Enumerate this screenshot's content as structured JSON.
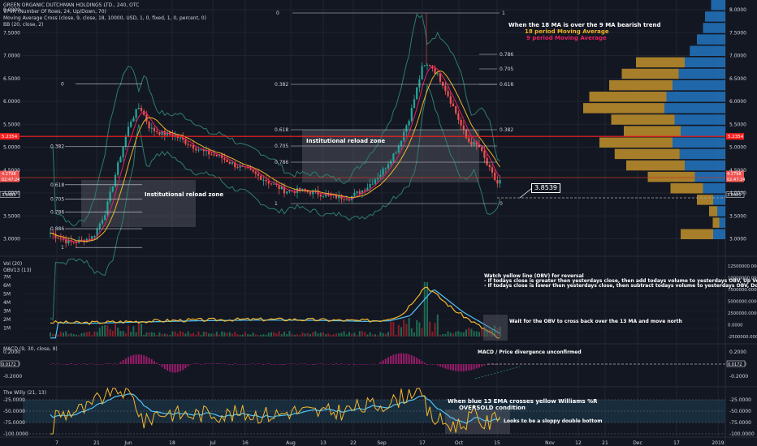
{
  "header": {
    "title": "GREEN ORGANIC DUTCHMAN HOLDINGS LTD., 240, OTC",
    "indicators": [
      "VPVR (Number Of Rows, 24, Up/Down, 70)",
      "Moving Average Cross (close, 9, close, 18, 10000, USD, 1, 0, fixed, 1, 0, percent, 0)",
      "BB (20, close, 2)"
    ]
  },
  "colors": {
    "background": "#131722",
    "grid": "#1f2433",
    "text": "#d1d4dc",
    "up_candle": "#26a69a",
    "down_candle": "#ef5350",
    "ma9": "#e91e63",
    "ma18": "#f0b429",
    "bb": "#2e7d6b",
    "obv": "#f5b82e",
    "obv_ma": "#4fc3f7",
    "vpvr_up": "#2270b8",
    "vpvr_down": "#b88a2a",
    "red_line": "#ff1f1f",
    "macd_hist": "#9c1c6b",
    "willy_band": "#1c3b4e"
  },
  "price_pane": {
    "y_ticks": [
      "8.0000",
      "7.5000",
      "7.0000",
      "6.5000",
      "6.0000",
      "5.5000",
      "5.0000",
      "4.5000",
      "4.0000",
      "3.5000",
      "3.0000"
    ],
    "red_level": "5.2354",
    "price_badge_top": "4.2798",
    "price_badge_mid": "02:47:24",
    "price_badge_bottom": "3.8485",
    "callout": "3.8539",
    "fib_left": [
      {
        "label": "0",
        "value": 6.38
      },
      {
        "label": "0.382",
        "value": 5.02
      },
      {
        "label": "0.618",
        "value": 4.18
      },
      {
        "label": "0.705",
        "value": 3.87
      },
      {
        "label": "0.786",
        "value": 3.58
      },
      {
        "label": "0.886",
        "value": 3.22
      },
      {
        "label": "1",
        "value": 2.81
      }
    ],
    "fib_right": [
      {
        "label": "0",
        "value": 8.0
      },
      {
        "label": "1",
        "value": 8.0
      },
      {
        "label": "0.786",
        "value": 7.0
      },
      {
        "label": "0.705",
        "value": 6.7
      },
      {
        "label": "0.618",
        "value": 6.38
      },
      {
        "label": "0.382",
        "value": 5.28
      },
      {
        "label": "0.382",
        "value": 5.76
      },
      {
        "label": "0.618",
        "value": 5.28
      },
      {
        "label": "0.705",
        "value": 4.98
      },
      {
        "label": "0.786",
        "value": 4.66
      },
      {
        "label": "1",
        "value": 3.85
      },
      {
        "label": "0",
        "value": 3.85
      }
    ],
    "zone_label": "Institutional reload zone",
    "note_title": "When the 18 MA is over the 9 MA bearish trend",
    "note_ma18": "18 period Moving Average",
    "note_ma9": "9 period Moving Average"
  },
  "volume_pane": {
    "legend_vol": "Vol (20)",
    "legend_obv": "OBV13 (13)",
    "left_ticks": [
      "7M",
      "6M",
      "5M",
      "4M",
      "3M",
      "2M",
      "1M"
    ],
    "right_ticks": [
      "12500000.0000",
      "10000000.0000",
      "7500000.0000",
      "5000000.0000",
      "2500000.0000",
      "0.0000",
      "-2500000.0000"
    ],
    "note_lines": [
      "Watch yellow line (OBV) for reversal",
      "- If todays close is greater then yesterdays close, then add todays volume to yesterdays OBV, Up Volume",
      "- If todays close is lower then yesterdays close, then subtract todays volume to yesterdays OBV, Down Volume"
    ],
    "note_cross": "Wait for the OBV to cross back over the 13 MA and move north"
  },
  "macd_pane": {
    "legend": "MACD (9, 30, close, 9)",
    "left_ticks": [
      "0.2000",
      "0.0000",
      "-0.2000"
    ],
    "right_ticks": [
      "0.2000",
      "0.0000",
      "-0.2000"
    ],
    "left_badge": "0.0172",
    "right_badge": "0.0172",
    "note": "MACD / Price divergence unconfirmed"
  },
  "willy_pane": {
    "legend": "The Willy (21, 13)",
    "ticks": [
      "-25.0000",
      "-50.0000",
      "-75.0000",
      "-100.0000"
    ],
    "note_1": "When blue 13 EMA crosses yellow Williams %R",
    "note_2": "OVERSOLD condition",
    "note_3": "Looks to be a sloppy double bottom"
  },
  "x_axis": {
    "labels": [
      "7",
      "21",
      "Jun",
      "18",
      "Jul",
      "16",
      "Aug",
      "13",
      "22",
      "Sep",
      "17",
      "Oct",
      "15",
      "Nov",
      "12",
      "21",
      "Dec",
      "17",
      "2019"
    ]
  },
  "chart_data": {
    "type": "candlestick",
    "title": "GREEN ORGANIC DUTCHMAN HOLDINGS LTD., 240, OTC",
    "x": [
      "May 7",
      "May 21",
      "Jun",
      "Jun 18",
      "Jul",
      "Jul 16",
      "Aug",
      "Aug 13",
      "Aug 22",
      "Sep",
      "Sep 17",
      "Oct",
      "Oct 15"
    ],
    "close": [
      3.15,
      2.95,
      5.4,
      5.1,
      4.85,
      4.5,
      4.05,
      3.9,
      4.25,
      5.2,
      6.75,
      5.35,
      3.85
    ],
    "ylim": [
      2.6,
      8.1
    ],
    "obv_series": [
      0.9,
      0.8,
      1.0,
      1.2,
      1.3,
      1.3,
      1.2,
      1.1,
      1.2,
      2.0,
      6.2,
      2.6,
      -1.5
    ],
    "obv_units": "M",
    "willy_range": [
      -100,
      0
    ]
  }
}
